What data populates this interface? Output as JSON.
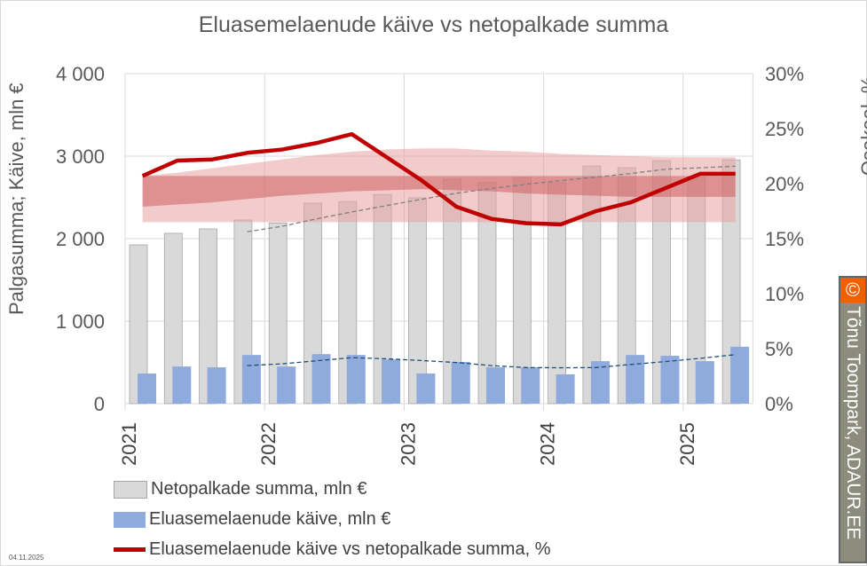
{
  "chart_data": {
    "type": "bar",
    "title": "Eluasemelaenude käive vs netopalkade summa",
    "ylabel": "Palgasumma; Käive, mln €",
    "y2label": "Osakaal, %",
    "ylim": [
      0,
      4000
    ],
    "y2lim": [
      0,
      30
    ],
    "yticks": [
      "0",
      "1 000",
      "2 000",
      "3 000",
      "4 000"
    ],
    "y2ticks": [
      "0%",
      "5%",
      "10%",
      "15%",
      "20%",
      "25%",
      "30%"
    ],
    "xticks": [
      "2021",
      "2022",
      "2023",
      "2024",
      "2025"
    ],
    "grid": true,
    "legend_position": "bottom",
    "categories": [
      "2021Q1",
      "2021Q2",
      "2021Q3",
      "2021Q4",
      "2022Q1",
      "2022Q2",
      "2022Q3",
      "2022Q4",
      "2023Q1",
      "2023Q2",
      "2023Q3",
      "2023Q4",
      "2024Q1",
      "2024Q2",
      "2024Q3",
      "2024Q4",
      "2025Q1",
      "2025Q2"
    ],
    "series": [
      {
        "name": "Netopalkade summa, mln €",
        "type": "bar",
        "color": "#d9d9d9",
        "values": [
          1925,
          2065,
          2118,
          2225,
          2190,
          2430,
          2450,
          2535,
          2495,
          2720,
          2680,
          2740,
          2680,
          2880,
          2860,
          2945,
          2750,
          2955
        ]
      },
      {
        "name": "Eluasemelaenude käive, mln €",
        "type": "bar",
        "color": "#8faadc",
        "values": [
          365,
          450,
          440,
          590,
          450,
          600,
          590,
          535,
          365,
          505,
          440,
          440,
          355,
          515,
          590,
          580,
          515,
          690
        ]
      },
      {
        "name": "Eluasemelaenude käive vs netopalkade summa, %",
        "type": "line",
        "axis": "right",
        "color": "#c00000",
        "values": [
          20.7,
          22.1,
          22.2,
          22.8,
          23.1,
          23.7,
          24.5,
          22.4,
          20.3,
          17.9,
          16.8,
          16.4,
          16.3,
          17.5,
          18.3,
          19.6,
          20.9,
          20.9
        ]
      }
    ],
    "bands": [
      {
        "color": "#e8a0a0",
        "upper": [
          20.7,
          21.0,
          21.4,
          21.8,
          22.2,
          22.6,
          22.9,
          23.1,
          23.2,
          23.2,
          23.0,
          22.9,
          22.7,
          22.6,
          22.5,
          22.4,
          22.4,
          22.4
        ],
        "lower": [
          16.5,
          16.5,
          16.5,
          16.5,
          16.5,
          16.5,
          16.5,
          16.5,
          16.5,
          16.5,
          16.5,
          16.5,
          16.5,
          16.5,
          16.5,
          16.5,
          16.5,
          16.5
        ]
      },
      {
        "color": "#d06060",
        "upper": [
          20.7,
          20.7,
          20.7,
          20.7,
          20.7,
          20.7,
          20.7,
          20.7,
          20.7,
          20.7,
          20.7,
          20.7,
          20.7,
          20.7,
          20.7,
          20.7,
          20.7,
          20.7
        ],
        "lower": [
          17.9,
          18.1,
          18.3,
          18.6,
          18.9,
          19.1,
          19.3,
          19.4,
          19.5,
          19.4,
          19.3,
          19.1,
          19.0,
          18.9,
          18.8,
          18.8,
          18.8,
          18.8
        ]
      }
    ]
  },
  "watermark": {
    "symbol": "©",
    "text": "Tõnu Toompark, ADAUR.EE"
  },
  "date": "04.11.2025"
}
